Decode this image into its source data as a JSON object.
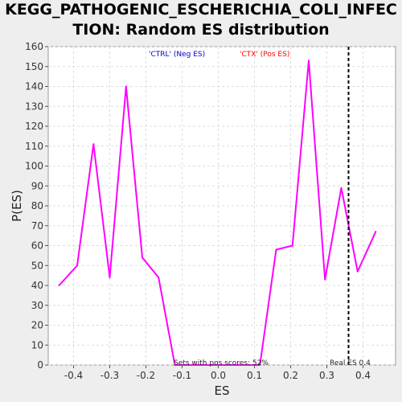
{
  "chart_data": {
    "type": "line",
    "title_line1": "KEGG_PATHOGENIC_ESCHERICHIA_COLI_INFEC",
    "title_line2": "TION: Random ES distribution",
    "xlabel": "ES",
    "ylabel": "P(ES)",
    "xlim": [
      -0.47,
      0.49
    ],
    "ylim": [
      0,
      160
    ],
    "xticks": [
      -0.4,
      -0.3,
      -0.2,
      -0.1,
      0.0,
      0.1,
      0.2,
      0.3,
      0.4
    ],
    "xtick_labels": [
      "-0.4",
      "-0.3",
      "-0.2",
      "-0.1",
      "0.0",
      "0.1",
      "0.2",
      "0.3",
      "0.4"
    ],
    "yticks": [
      0,
      10,
      20,
      30,
      40,
      50,
      60,
      70,
      80,
      90,
      100,
      110,
      120,
      130,
      140,
      150,
      160
    ],
    "grid": true,
    "series": [
      {
        "color": "#ff00ff",
        "x": [
          -0.44,
          -0.39,
          -0.345,
          -0.3,
          -0.255,
          -0.21,
          -0.165,
          -0.12,
          -0.075,
          -0.03,
          0.02,
          0.07,
          0.115,
          0.16,
          0.205,
          0.25,
          0.295,
          0.34,
          0.385,
          0.435
        ],
        "y": [
          40,
          50,
          111,
          44,
          140,
          54,
          44,
          0,
          0,
          0,
          0,
          0,
          0,
          58,
          60,
          153,
          43,
          89,
          47,
          67
        ]
      }
    ],
    "reference_line": {
      "x": 0.36,
      "label": "Real ES 0.4",
      "style": "dashed",
      "color": "#000000"
    },
    "legend": [
      {
        "text": "'CTRL' (Neg ES)",
        "color": "#0000cc",
        "placement": "top-left"
      },
      {
        "text": "'CTX' (Pos ES)",
        "color": "#ff0000",
        "placement": "top-right"
      }
    ],
    "annotation": "Sets with pos scores: 52%"
  }
}
